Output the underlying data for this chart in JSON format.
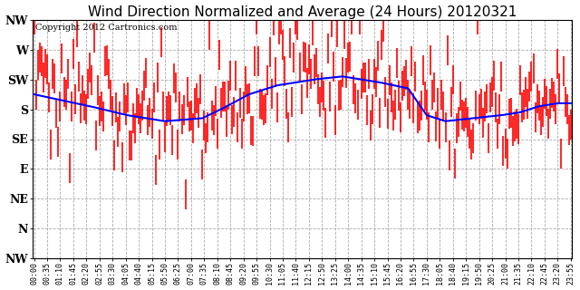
{
  "title": "Wind Direction Normalized and Average (24 Hours) 20120321",
  "copyright_text": "Copyright 2012 Cartronics.com",
  "ytick_labels": [
    "NW",
    "W",
    "SW",
    "S",
    "SE",
    "E",
    "NE",
    "N",
    "NW"
  ],
  "ytick_values": [
    8,
    7,
    6,
    5,
    4,
    3,
    2,
    1,
    0
  ],
  "ymin": 0,
  "ymax": 8,
  "background_color": "#ffffff",
  "plot_bg_color": "#ffffff",
  "grid_color": "#aaaaaa",
  "bar_color": "#ff0000",
  "line_color": "#0000ff",
  "title_fontsize": 11,
  "copyright_fontsize": 7,
  "xtick_fontsize": 6,
  "ytick_fontsize": 9,
  "time_labels": [
    "00:00",
    "00:35",
    "01:10",
    "01:45",
    "02:20",
    "02:55",
    "03:30",
    "04:05",
    "04:40",
    "05:15",
    "05:50",
    "06:25",
    "07:00",
    "07:35",
    "08:10",
    "08:45",
    "09:20",
    "09:55",
    "10:30",
    "11:05",
    "11:40",
    "12:15",
    "12:50",
    "13:25",
    "14:00",
    "14:35",
    "15:10",
    "15:45",
    "16:20",
    "16:55",
    "17:30",
    "18:05",
    "18:40",
    "19:15",
    "19:50",
    "20:25",
    "21:00",
    "21:35",
    "22:10",
    "22:45",
    "23:20",
    "23:55"
  ],
  "avg_keyframes_x": [
    0,
    15,
    30,
    50,
    70,
    90,
    100,
    115,
    130,
    150,
    165,
    185,
    200,
    210,
    220,
    235,
    250,
    260,
    270,
    280,
    287
  ],
  "avg_keyframes_y": [
    5.5,
    5.3,
    5.1,
    4.8,
    4.6,
    4.7,
    5.0,
    5.5,
    5.8,
    6.0,
    6.1,
    5.9,
    5.7,
    4.8,
    4.6,
    4.7,
    4.8,
    4.9,
    5.1,
    5.2,
    5.2
  ]
}
